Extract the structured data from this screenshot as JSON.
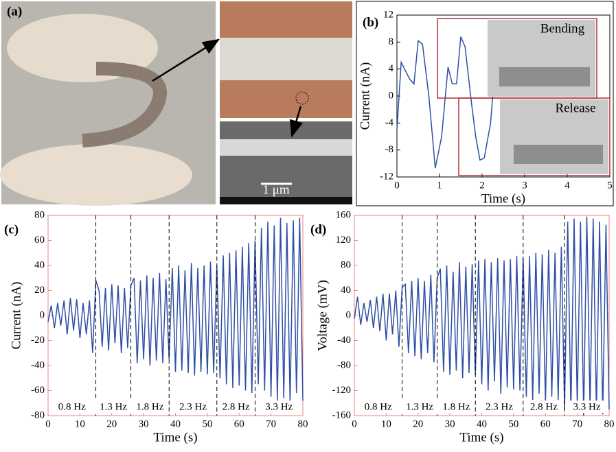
{
  "photo_panel": {
    "label": "(a)",
    "scale_bar": "1 μm"
  },
  "chart_data": [
    {
      "type": "line",
      "label": "(b)",
      "xlabel": "Time (s)",
      "ylabel": "Current  (nA)",
      "color": "#2e4fa3",
      "x": [
        0,
        0.1,
        0.3,
        0.4,
        0.5,
        0.6,
        0.75,
        0.9,
        1.05,
        1.2,
        1.3,
        1.4,
        1.5,
        1.6,
        1.75,
        1.85,
        1.95,
        2.05,
        2.2,
        2.25
      ],
      "values": [
        -5,
        5,
        2.5,
        1.8,
        8.2,
        7.7,
        0,
        -10.7,
        -6,
        4.3,
        1.8,
        1.8,
        8.8,
        7.3,
        -1,
        -6,
        -9.5,
        -9.2,
        -4,
        0
      ],
      "xlim": [
        0,
        5
      ],
      "xticks": [
        0,
        1,
        2,
        3,
        4,
        5
      ],
      "ylim": [
        -12,
        12
      ],
      "yticks": [
        -12,
        -8,
        -4,
        0,
        4,
        8,
        12
      ],
      "insets": [
        "Bending",
        "Release"
      ]
    },
    {
      "type": "line",
      "label": "(c)",
      "xlabel": "Time (s)",
      "ylabel": "Current (nA)",
      "color": "#2e4fa3",
      "x": [
        0,
        1,
        2,
        3,
        4,
        5,
        6,
        7,
        8,
        9,
        10,
        11,
        12,
        13,
        14,
        15,
        16,
        17,
        18,
        19,
        20,
        21,
        22,
        23,
        24,
        25,
        26,
        27,
        28,
        29,
        30,
        31,
        32,
        33,
        34,
        35,
        36,
        37,
        38,
        39,
        40,
        41,
        42,
        43,
        44,
        45,
        46,
        47,
        48,
        49,
        50,
        51,
        52,
        53,
        54,
        55,
        56,
        57,
        58,
        59,
        60,
        61,
        62,
        63,
        64,
        65,
        66,
        67,
        68,
        69,
        70,
        71,
        72,
        73,
        74,
        75,
        76,
        77,
        78,
        79,
        80
      ],
      "values": [
        -5,
        8,
        -10,
        10,
        -8,
        12,
        -15,
        14,
        -12,
        13,
        -18,
        10,
        -15,
        12,
        -30,
        28,
        20,
        -25,
        22,
        -28,
        25,
        -22,
        24,
        -30,
        22,
        -26,
        24,
        30,
        -38,
        28,
        -35,
        32,
        -40,
        30,
        -36,
        34,
        -38,
        29,
        -35,
        38,
        -45,
        40,
        -44,
        36,
        -46,
        42,
        -48,
        38,
        -45,
        40,
        -47,
        43,
        -46,
        40,
        -50,
        48,
        -55,
        50,
        -58,
        52,
        -56,
        55,
        -60,
        58,
        -62,
        60,
        -55,
        70,
        -60,
        75,
        -65,
        72,
        -68,
        78,
        -66,
        74,
        -70,
        76,
        -62,
        78,
        -68
      ],
      "xlim": [
        0,
        80
      ],
      "xticks": [
        0,
        10,
        20,
        30,
        40,
        50,
        60,
        70,
        80
      ],
      "ylim": [
        -80,
        80
      ],
      "yticks": [
        -80,
        -60,
        -40,
        -20,
        0,
        20,
        40,
        60,
        80
      ],
      "dividers": [
        15,
        26,
        38,
        53,
        65
      ],
      "annotations": [
        "0.8 Hz",
        "1.3 Hz",
        "1.8 Hz",
        "2.3 Hz",
        "2.8 Hz",
        "3.3 Hz"
      ]
    },
    {
      "type": "line",
      "label": "(d)",
      "xlabel": "Time (s)",
      "ylabel": "Voltage (mV)",
      "color": "#2e4fa3",
      "x": [
        0,
        1,
        2,
        3,
        4,
        5,
        6,
        7,
        8,
        9,
        10,
        11,
        12,
        13,
        14,
        15,
        16,
        17,
        18,
        19,
        20,
        21,
        22,
        23,
        24,
        25,
        26,
        27,
        28,
        29,
        30,
        31,
        32,
        33,
        34,
        35,
        36,
        37,
        38,
        39,
        40,
        41,
        42,
        43,
        44,
        45,
        46,
        47,
        48,
        49,
        50,
        51,
        52,
        53,
        54,
        55,
        56,
        57,
        58,
        59,
        60,
        61,
        62,
        63,
        64,
        65,
        66,
        67,
        68,
        69,
        70,
        71,
        72,
        73,
        74,
        75,
        76,
        77,
        78,
        79,
        80
      ],
      "values": [
        -5,
        30,
        -15,
        20,
        -10,
        25,
        -20,
        30,
        -25,
        35,
        -40,
        35,
        -30,
        40,
        -50,
        45,
        50,
        -60,
        55,
        -65,
        60,
        -70,
        55,
        -60,
        65,
        -75,
        60,
        75,
        -90,
        80,
        -95,
        70,
        -88,
        85,
        -100,
        78,
        -92,
        82,
        -95,
        88,
        -110,
        90,
        -120,
        85,
        -105,
        92,
        -125,
        88,
        -115,
        90,
        -118,
        95,
        -120,
        92,
        -130,
        95,
        -135,
        100,
        -125,
        98,
        -140,
        105,
        -130,
        100,
        -135,
        110,
        -150,
        150,
        -155,
        155,
        -145,
        150,
        -160,
        158,
        -150,
        155,
        -155,
        150,
        -158,
        145,
        -150
      ],
      "xlim": [
        0,
        80
      ],
      "xticks": [
        0,
        10,
        20,
        30,
        40,
        50,
        60,
        70,
        80
      ],
      "ylim": [
        -160,
        160
      ],
      "yticks": [
        -160,
        -120,
        -80,
        -40,
        0,
        40,
        80,
        120,
        160
      ],
      "dividers": [
        15,
        26,
        38,
        53,
        66
      ],
      "annotations": [
        "0.8 Hz",
        "1.3 Hz",
        "1.8 Hz",
        "2.3 Hz",
        "2.8 Hz",
        "3.3 Hz"
      ]
    }
  ]
}
